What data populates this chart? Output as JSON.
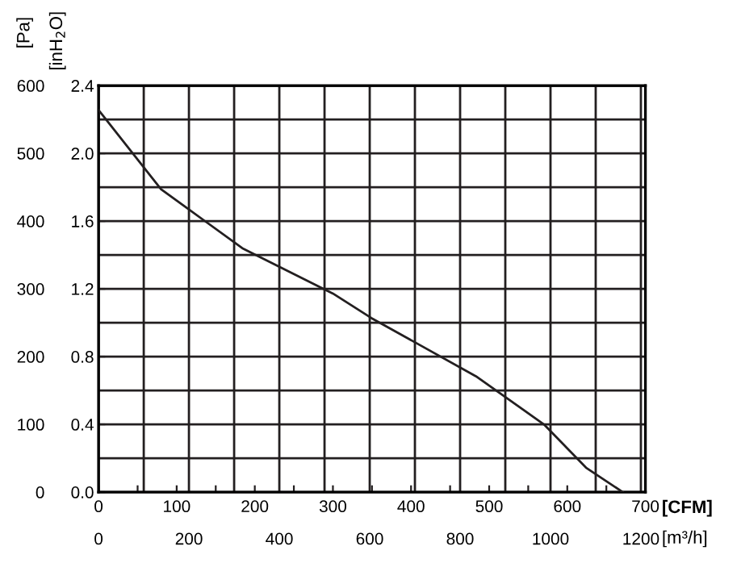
{
  "chart_data": {
    "type": "line",
    "x": [
      0,
      80,
      184,
      300,
      349,
      483,
      570,
      624,
      671
    ],
    "series": [
      {
        "color": "#231f20",
        "values": [
          564,
          447,
          360,
          293,
          257,
          171,
          100,
          36,
          0
        ]
      }
    ],
    "xlabel": "[CFM]",
    "ylabel": "[Pa]",
    "x2label": "[m³/h]",
    "y2label": "[inH$_{2}$O]",
    "xlim": [
      0,
      700
    ],
    "ylim": [
      0,
      600
    ],
    "xticks": [
      0,
      {
        "value": 50,
        "label": null
      },
      100,
      {
        "value": 150,
        "label": null
      },
      200,
      {
        "value": 250,
        "label": null
      },
      300,
      {
        "value": 350,
        "label": null
      },
      400,
      {
        "value": 450,
        "label": null
      },
      500,
      {
        "value": 550,
        "label": null
      },
      600,
      {
        "value": 650,
        "label": null
      },
      700
    ],
    "yticks": [
      0,
      100,
      200,
      300,
      400,
      500,
      600
    ],
    "x2lim": [
      0,
      1210
    ],
    "x2ticks": [
      0,
      {
        "value": 100,
        "label": null
      },
      200,
      {
        "value": 300,
        "label": null
      },
      400,
      {
        "value": 500,
        "label": null
      },
      600,
      {
        "value": 700,
        "label": null
      },
      800,
      {
        "value": 900,
        "label": null
      },
      1000,
      {
        "value": 1100,
        "label": null
      },
      1200
    ],
    "y2lim": [
      0,
      2.4
    ],
    "y2ticks": [
      {
        "value": 0,
        "label": "0.0"
      },
      {
        "value": 0.2,
        "label": null
      },
      0.4,
      {
        "value": 0.6,
        "label": null
      },
      0.8,
      {
        "value": 1.0,
        "label": null
      },
      1.2,
      {
        "value": 1.4,
        "label": null
      },
      1.6,
      {
        "value": 1.8,
        "label": null
      },
      {
        "value": 2.0,
        "label": "2.0"
      },
      {
        "value": 2.2,
        "label": null
      },
      2.4
    ],
    "grid": true,
    "marker": "none",
    "line_style": "solid"
  }
}
